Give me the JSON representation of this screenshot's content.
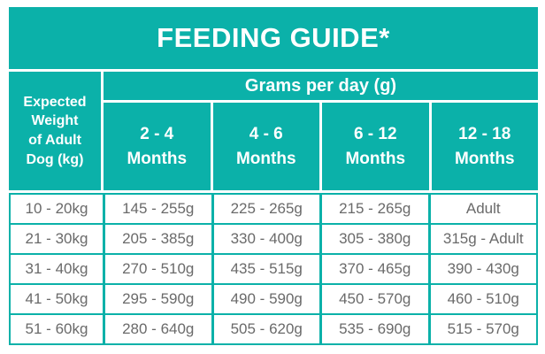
{
  "theme": {
    "teal": "#0bb1a9",
    "data_text_gray": "#6a6a6a",
    "cell_background": "#ffffff",
    "header_text": "#ffffff"
  },
  "chart_data": {
    "type": "table",
    "title": "FEEDING GUIDE*",
    "corner_header": "Expected\nWeight\nof Adult\nDog (kg)",
    "span_header": "Grams per day (g)",
    "column_headers": [
      "2 - 4\nMonths",
      "4 - 6\nMonths",
      "6 - 12\nMonths",
      "12 - 18\nMonths"
    ],
    "rows": [
      {
        "weight": "10 - 20kg",
        "values": [
          "145 - 255g",
          "225 - 265g",
          "215 - 265g",
          "Adult"
        ]
      },
      {
        "weight": "21 - 30kg",
        "values": [
          "205 - 385g",
          "330 - 400g",
          "305 - 380g",
          "315g - Adult"
        ]
      },
      {
        "weight": "31 - 40kg",
        "values": [
          "270 - 510g",
          "435 - 515g",
          "370 - 465g",
          "390 - 430g"
        ]
      },
      {
        "weight": "41 - 50kg",
        "values": [
          "295 - 590g",
          "490 - 590g",
          "450 - 570g",
          "460 - 510g"
        ]
      },
      {
        "weight": "51 - 60kg",
        "values": [
          "280 - 640g",
          "505 - 620g",
          "535 - 690g",
          "515 - 570g"
        ]
      }
    ]
  }
}
